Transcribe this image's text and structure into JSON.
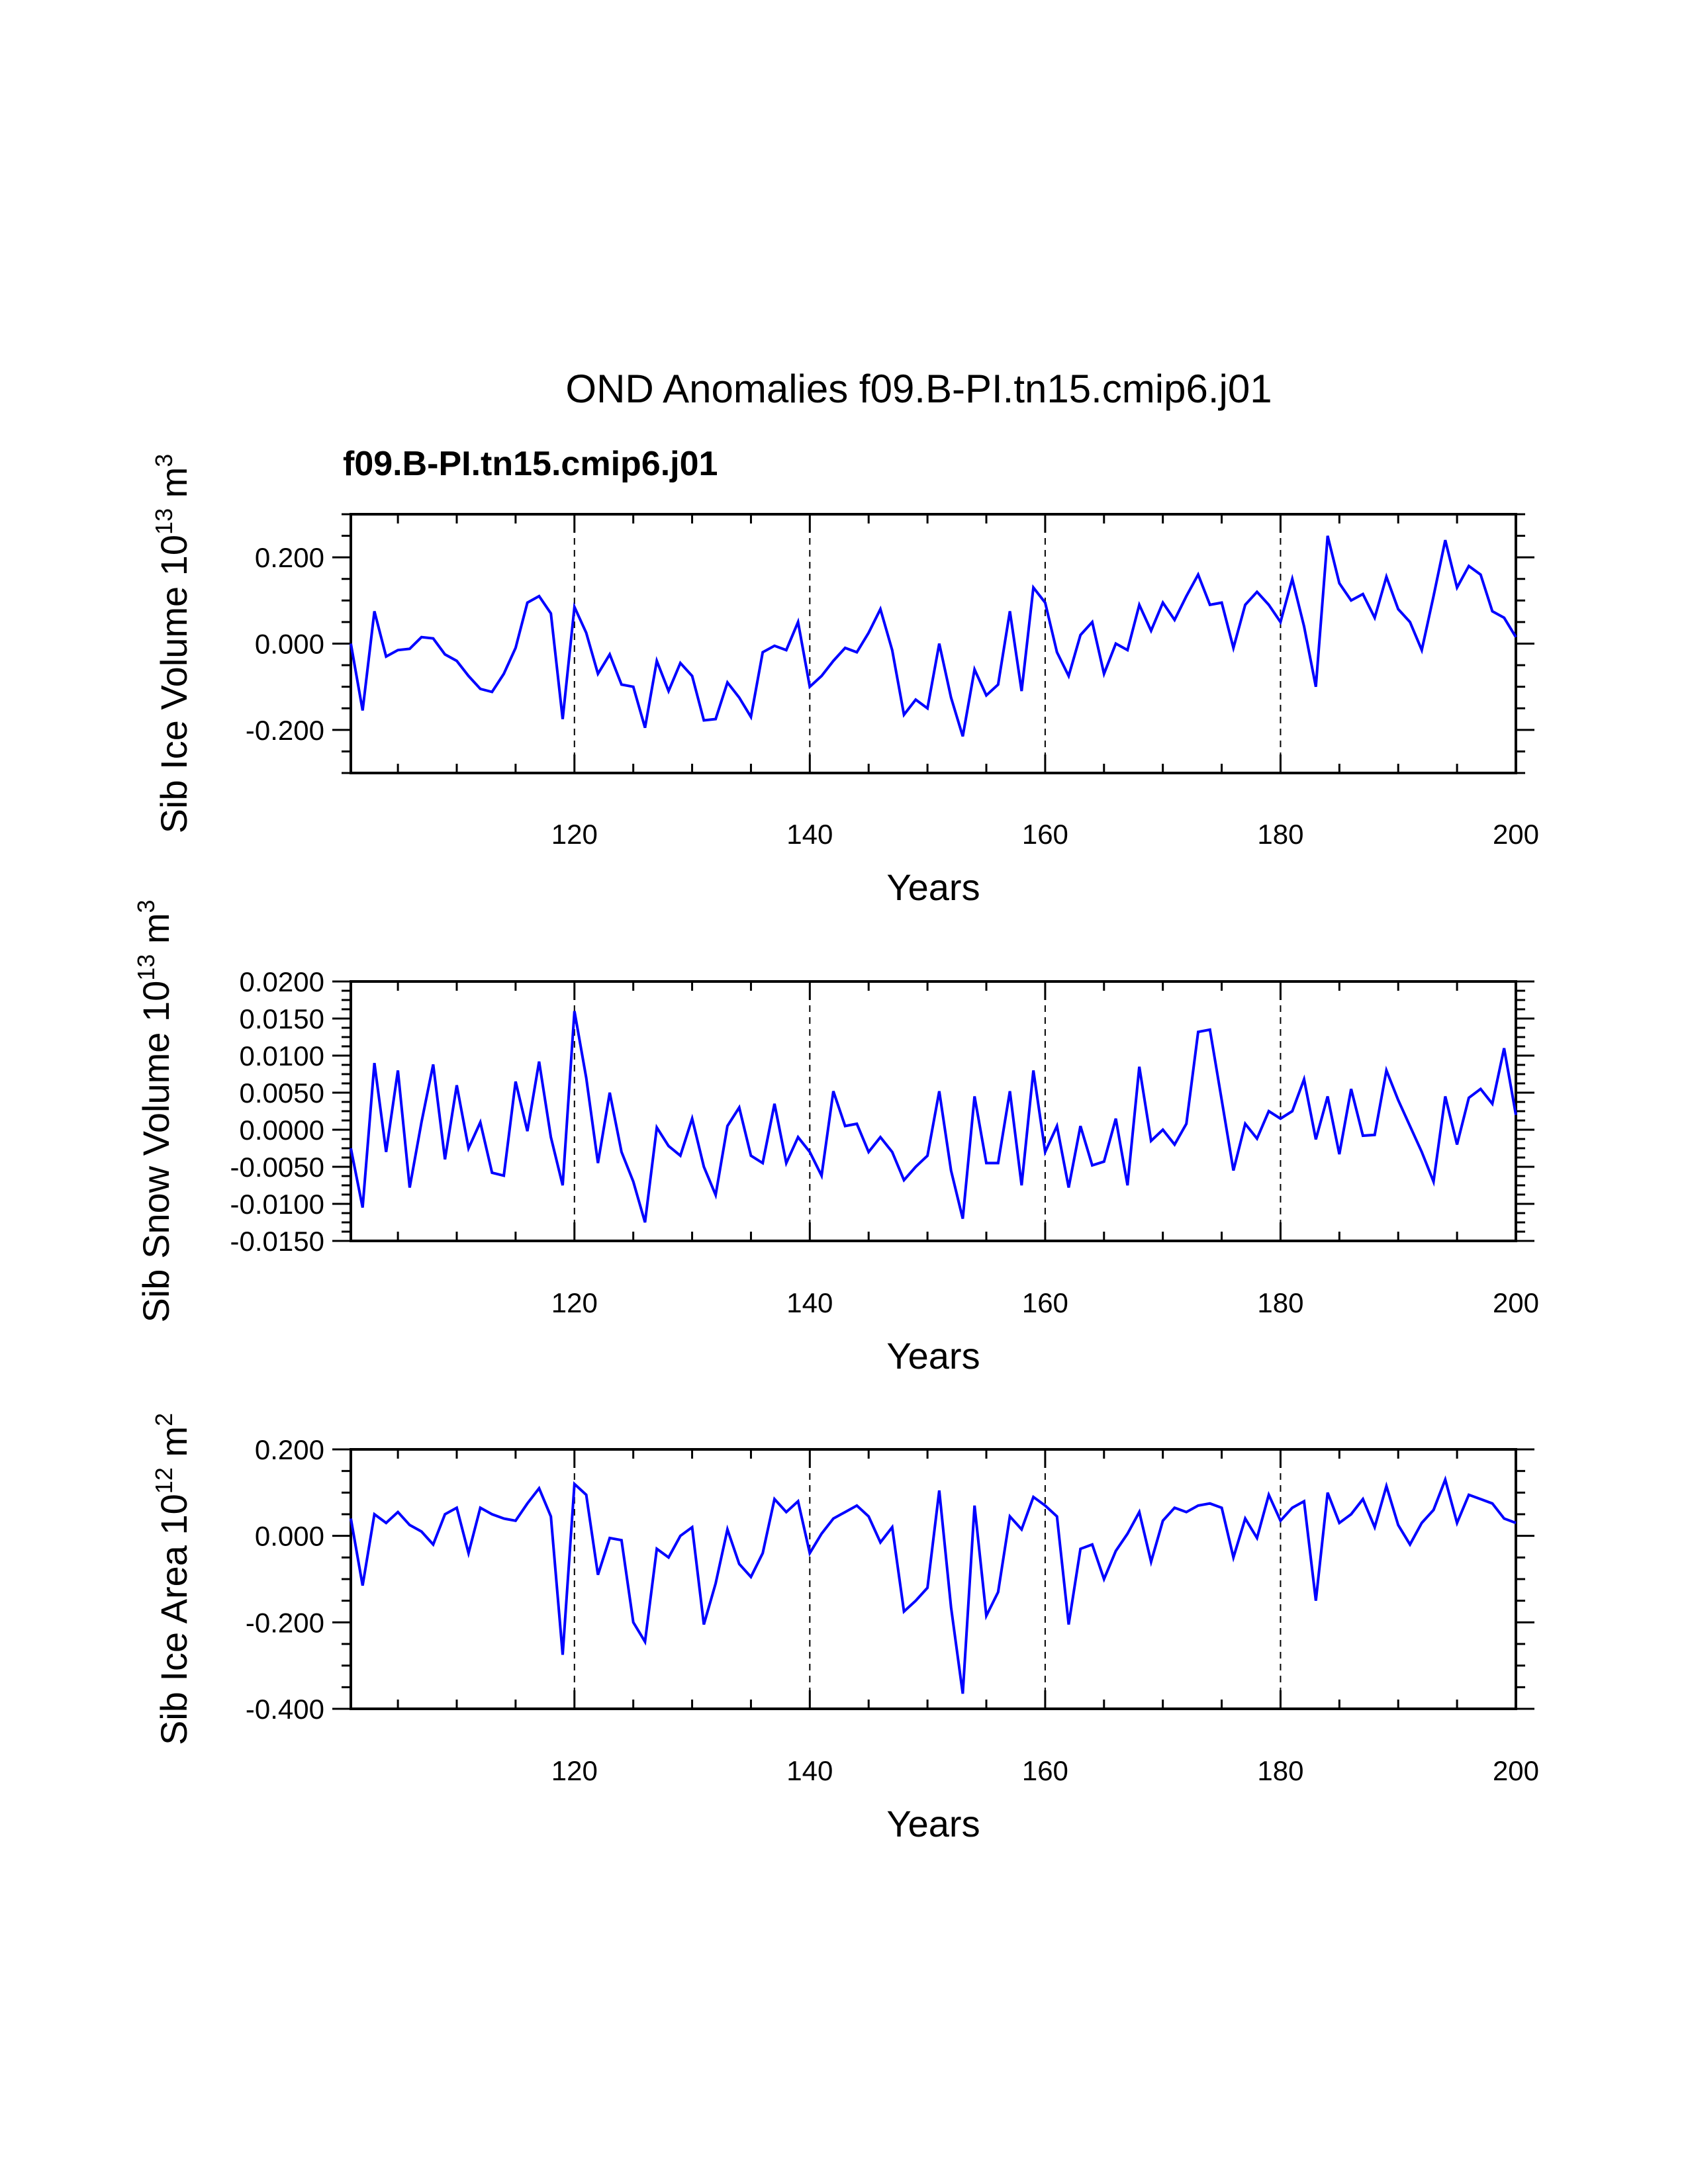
{
  "title": "OND Anomalies f09.B-PI.tn15.cmip6.j01",
  "subtitle": "f09.B-PI.tn15.cmip6.j01",
  "colors": {
    "line": "#0000ff",
    "subtitle": "#0000ff",
    "axis": "#000000"
  },
  "chart_data": [
    {
      "type": "line",
      "name": "ice-volume",
      "ylabel_main": "Sib Ice Volume 10",
      "ylabel_exp": "13",
      "ylabel_unit": " m",
      "ylabel_unit_exp": "3",
      "xlabel": "Years",
      "xlim": [
        101,
        200
      ],
      "ylim": [
        -0.3,
        0.3
      ],
      "x_ticks": [
        120,
        140,
        160,
        180,
        200
      ],
      "x_tick_labels": [
        "120",
        "140",
        "160",
        "180",
        "200"
      ],
      "y_ticks": [
        -0.2,
        0.0,
        0.2
      ],
      "y_tick_labels": [
        "-0.200",
        "0.000",
        "0.200"
      ],
      "gridlines_x": [
        120,
        140,
        160,
        180
      ],
      "x_start": 101,
      "values": [
        0.0,
        -0.155,
        0.075,
        -0.03,
        -0.015,
        -0.012,
        0.015,
        0.012,
        -0.025,
        -0.04,
        -0.075,
        -0.105,
        -0.112,
        -0.07,
        -0.01,
        0.095,
        0.11,
        0.07,
        -0.175,
        0.085,
        0.025,
        -0.07,
        -0.025,
        -0.095,
        -0.1,
        -0.195,
        -0.04,
        -0.11,
        -0.045,
        -0.075,
        -0.178,
        -0.175,
        -0.09,
        -0.125,
        -0.17,
        -0.02,
        -0.005,
        -0.015,
        0.05,
        -0.1,
        -0.075,
        -0.04,
        -0.01,
        -0.02,
        0.025,
        0.08,
        -0.015,
        -0.165,
        -0.13,
        -0.15,
        0.0,
        -0.125,
        -0.215,
        -0.06,
        -0.12,
        -0.095,
        0.075,
        -0.11,
        0.13,
        0.095,
        -0.02,
        -0.075,
        0.02,
        0.05,
        -0.07,
        0.0,
        -0.015,
        0.09,
        0.03,
        0.095,
        0.055,
        0.11,
        0.16,
        0.09,
        0.095,
        -0.01,
        0.09,
        0.12,
        0.09,
        0.05,
        0.15,
        0.04,
        -0.1,
        0.25,
        0.14,
        0.1,
        0.115,
        0.06,
        0.155,
        0.08,
        0.05,
        -0.015,
        0.11,
        0.24,
        0.13,
        0.18,
        0.16,
        0.075,
        0.06,
        0.015
      ]
    },
    {
      "type": "line",
      "name": "snow-volume",
      "ylabel_main": "Sib Snow Volume 10",
      "ylabel_exp": "13",
      "ylabel_unit": " m",
      "ylabel_unit_exp": "3",
      "xlabel": "Years",
      "xlim": [
        101,
        200
      ],
      "ylim": [
        -0.015,
        0.02
      ],
      "x_ticks": [
        120,
        140,
        160,
        180,
        200
      ],
      "x_tick_labels": [
        "120",
        "140",
        "160",
        "180",
        "200"
      ],
      "y_ticks": [
        -0.015,
        -0.01,
        -0.005,
        0.0,
        0.005,
        0.01,
        0.015,
        0.02
      ],
      "y_tick_labels": [
        "-0.0150",
        "-0.0100",
        "-0.0050",
        "0.0000",
        "0.0050",
        "0.0100",
        "0.0150",
        "0.0200"
      ],
      "gridlines_x": [
        120,
        140,
        160,
        180
      ],
      "x_start": 101,
      "values": [
        -0.0025,
        -0.0105,
        0.009,
        -0.003,
        0.008,
        -0.0078,
        0.001,
        0.0088,
        -0.004,
        0.006,
        -0.0025,
        0.001,
        -0.0058,
        -0.0062,
        0.0065,
        -0.0002,
        0.0092,
        -0.001,
        -0.0075,
        0.016,
        0.007,
        -0.0045,
        0.005,
        -0.003,
        -0.007,
        -0.0125,
        0.0003,
        -0.0022,
        -0.0035,
        0.0015,
        -0.005,
        -0.0088,
        0.0005,
        0.003,
        -0.0035,
        -0.0045,
        0.0035,
        -0.0045,
        -0.001,
        -0.003,
        -0.0062,
        0.0052,
        0.0005,
        0.0008,
        -0.003,
        -0.001,
        -0.003,
        -0.0068,
        -0.005,
        -0.0035,
        0.0052,
        -0.0055,
        -0.012,
        0.0045,
        -0.0045,
        -0.0045,
        0.0052,
        -0.0075,
        0.008,
        -0.003,
        0.0005,
        -0.0078,
        0.0005,
        -0.0048,
        -0.0043,
        0.0015,
        -0.0075,
        0.0085,
        -0.0015,
        0.0,
        -0.002,
        0.0008,
        0.0132,
        0.0135,
        0.004,
        -0.0055,
        0.0008,
        -0.0012,
        0.0025,
        0.0015,
        0.0025,
        0.0068,
        -0.0013,
        0.0045,
        -0.0033,
        0.0055,
        -0.0008,
        -0.0007,
        0.008,
        0.004,
        0.0005,
        -0.003,
        -0.007,
        0.0045,
        -0.002,
        0.0043,
        0.0055,
        0.0035,
        0.011,
        0.002
      ]
    },
    {
      "type": "line",
      "name": "ice-area",
      "ylabel_main": "Sib Ice Area 10",
      "ylabel_exp": "12",
      "ylabel_unit": " m",
      "ylabel_unit_exp": "2",
      "xlabel": "Years",
      "xlim": [
        101,
        200
      ],
      "ylim": [
        -0.4,
        0.2
      ],
      "x_ticks": [
        120,
        140,
        160,
        180,
        200
      ],
      "x_tick_labels": [
        "120",
        "140",
        "160",
        "180",
        "200"
      ],
      "y_ticks": [
        -0.4,
        -0.2,
        0.0,
        0.2
      ],
      "y_tick_labels": [
        "-0.400",
        "-0.200",
        "0.000",
        "0.200"
      ],
      "gridlines_x": [
        120,
        140,
        160,
        180
      ],
      "x_start": 101,
      "values": [
        0.04,
        -0.115,
        0.05,
        0.03,
        0.055,
        0.025,
        0.01,
        -0.02,
        0.05,
        0.065,
        -0.04,
        0.065,
        0.05,
        0.04,
        0.035,
        0.075,
        0.11,
        0.045,
        -0.275,
        0.12,
        0.095,
        -0.09,
        -0.005,
        -0.01,
        -0.2,
        -0.245,
        -0.03,
        -0.05,
        0.0,
        0.02,
        -0.205,
        -0.11,
        0.015,
        -0.065,
        -0.095,
        -0.04,
        0.085,
        0.055,
        0.08,
        -0.04,
        0.005,
        0.04,
        0.055,
        0.07,
        0.045,
        -0.015,
        0.02,
        -0.175,
        -0.15,
        -0.12,
        0.105,
        -0.165,
        -0.365,
        0.07,
        -0.185,
        -0.13,
        0.045,
        0.015,
        0.09,
        0.07,
        0.045,
        -0.205,
        -0.03,
        -0.02,
        -0.1,
        -0.035,
        0.005,
        0.055,
        -0.06,
        0.035,
        0.065,
        0.055,
        0.07,
        0.075,
        0.065,
        -0.05,
        0.04,
        -0.005,
        0.095,
        0.035,
        0.065,
        0.08,
        -0.15,
        0.1,
        0.03,
        0.05,
        0.085,
        0.02,
        0.115,
        0.025,
        -0.02,
        0.03,
        0.06,
        0.13,
        0.03,
        0.095,
        0.085,
        0.075,
        0.04,
        0.03
      ]
    }
  ]
}
